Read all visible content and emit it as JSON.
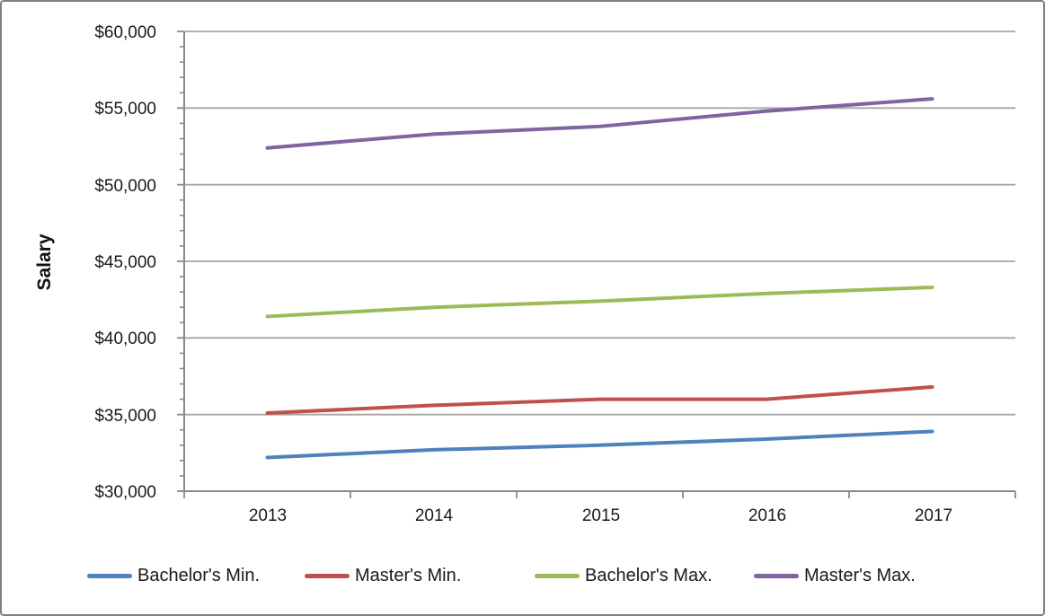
{
  "frame": {
    "background_color": "#FFFFFF",
    "border_color": "#7F7F7F"
  },
  "colors": {
    "gridline": "#A6A6A6",
    "axis": "#898989",
    "text": "#1A1A1A"
  },
  "chart_data": {
    "type": "line",
    "title": "",
    "xlabel": "",
    "ylabel": "Salary",
    "grid": true,
    "legend_position": "bottom",
    "categories": [
      "2013",
      "2014",
      "2015",
      "2016",
      "2017"
    ],
    "series": [
      {
        "name": "Bachelor's Min.",
        "color": "#4F81BD",
        "values": [
          32200,
          32700,
          33000,
          33400,
          33900
        ]
      },
      {
        "name": "Master's Min.",
        "color": "#C0504D",
        "values": [
          35100,
          35600,
          36000,
          36000,
          36800
        ]
      },
      {
        "name": "Bachelor's Max.",
        "color": "#9BBB59",
        "values": [
          41400,
          42000,
          42400,
          42900,
          43300
        ]
      },
      {
        "name": "Master's Max.",
        "color": "#8064A2",
        "values": [
          52400,
          53300,
          53800,
          54800,
          55600
        ]
      }
    ],
    "y_axis": {
      "min": 30000,
      "max": 60000,
      "major_step": 5000,
      "minor_step": 1000,
      "tick_labels": [
        "$60,000",
        "$55,000",
        "$50,000",
        "$45,000",
        "$40,000",
        "$35,000",
        "$30,000"
      ]
    }
  }
}
